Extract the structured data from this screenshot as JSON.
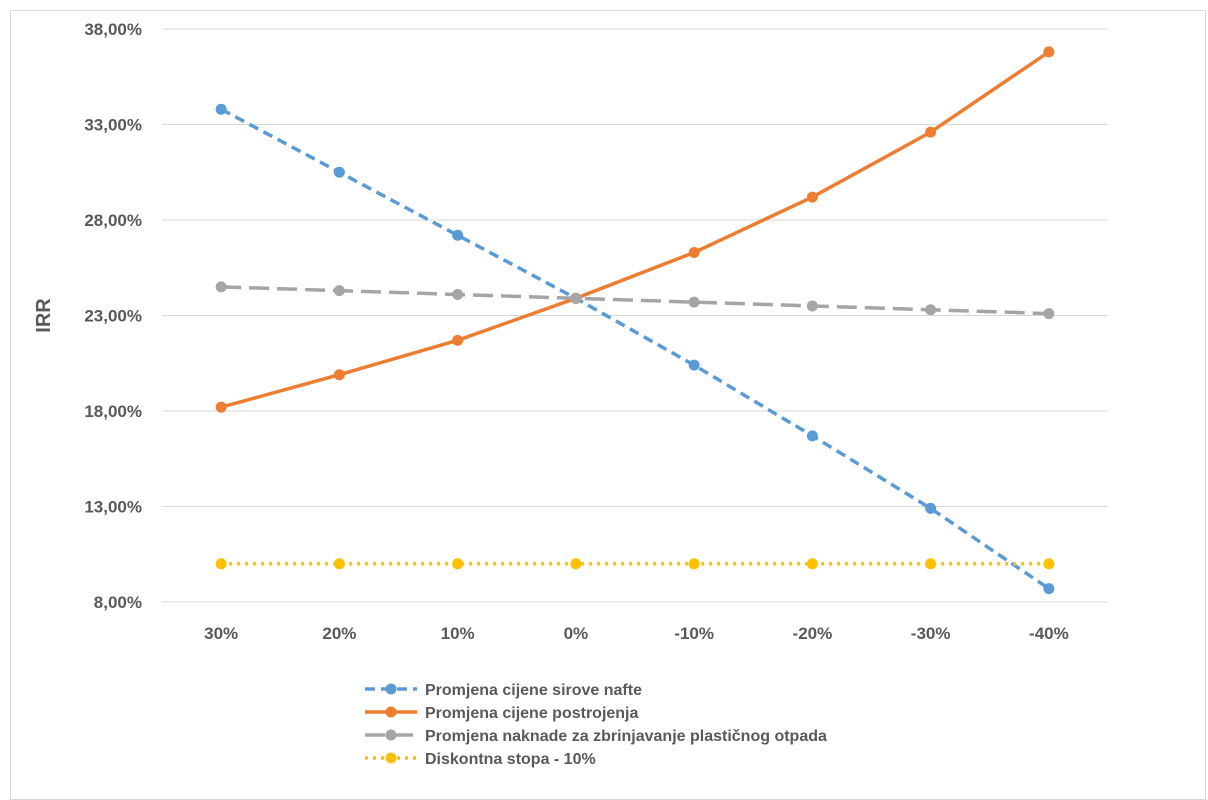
{
  "chart_data": {
    "type": "line",
    "categories": [
      "30%",
      "20%",
      "10%",
      "0%",
      "-10%",
      "-20%",
      "-30%",
      "-40%"
    ],
    "ylabel": "IRR",
    "xlabel": "",
    "title": "",
    "ylim": [
      0.08,
      0.38
    ],
    "yticks": [
      "8,00%",
      "13,00%",
      "18,00%",
      "23,00%",
      "28,00%",
      "33,00%",
      "38,00%"
    ],
    "ytick_values": [
      0.08,
      0.13,
      0.18,
      0.23,
      0.28,
      0.33,
      0.38
    ],
    "grid": true,
    "legend_position": "bottom",
    "series": [
      {
        "name": "Promjena cijene sirove nafte",
        "color": "#5b9bd5",
        "dash": "dashed",
        "values": [
          0.338,
          0.305,
          0.272,
          0.239,
          0.204,
          0.167,
          0.129,
          0.087
        ]
      },
      {
        "name": "Promjena cijene postrojenja",
        "color": "#ed7d31",
        "dash": "solid",
        "values": [
          0.182,
          0.199,
          0.217,
          0.239,
          0.263,
          0.292,
          0.326,
          0.368
        ]
      },
      {
        "name": "Promjena naknade za zbrinjavanje plastičnog otpada",
        "color": "#a5a5a5",
        "dash": "long-dash",
        "values": [
          0.245,
          0.243,
          0.241,
          0.239,
          0.237,
          0.235,
          0.233,
          0.231
        ]
      },
      {
        "name": "Diskontna stopa - 10%",
        "color": "#ffc000",
        "dash": "dotted",
        "values": [
          0.1,
          0.1,
          0.1,
          0.1,
          0.1,
          0.1,
          0.1,
          0.1
        ]
      }
    ]
  }
}
